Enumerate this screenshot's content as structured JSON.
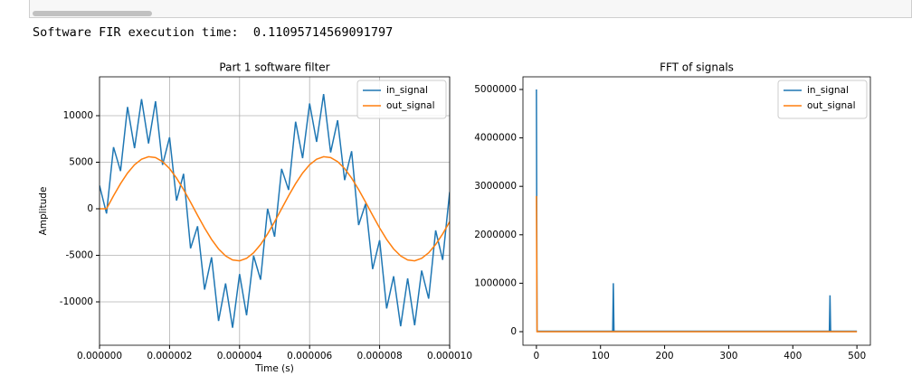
{
  "output_text": "Software FIR execution time:  0.11095714569091797",
  "chart_data": [
    {
      "type": "line",
      "title": "Part 1 software filter",
      "xlabel": "Time (s)",
      "ylabel": "Amplitude",
      "x": [
        0,
        2e-07,
        4e-07,
        6e-07,
        8e-07,
        1e-06,
        1.2e-06,
        1.4e-06,
        1.6e-06,
        1.8e-06,
        2e-06,
        2.2e-06,
        2.4e-06,
        2.6e-06,
        2.8e-06,
        3e-06,
        3.2e-06,
        3.4e-06,
        3.6e-06,
        3.8e-06,
        4e-06,
        4.2e-06,
        4.4e-06,
        4.6e-06,
        4.8e-06,
        5e-06,
        5.2e-06,
        5.4e-06,
        5.6e-06,
        5.8e-06,
        6e-06,
        6.2e-06,
        6.4e-06,
        6.6e-06,
        6.8e-06,
        7e-06,
        7.2e-06,
        7.4e-06,
        7.6e-06,
        7.8e-06,
        8e-06,
        8.2e-06,
        8.4e-06,
        8.6e-06,
        8.8e-06,
        9e-06,
        9.2e-06,
        9.4e-06,
        9.6e-06,
        9.8e-06,
        1e-05
      ],
      "series": [
        {
          "name": "in_signal",
          "color": "#1f77b4",
          "values": [
            2500,
            -510,
            6620,
            4050,
            10940,
            6510,
            11780,
            7020,
            11550,
            4710,
            7680,
            880,
            3750,
            -4250,
            -1880,
            -8680,
            -5210,
            -12050,
            -8020,
            -12780,
            -7010,
            -11440,
            -5050,
            -7620,
            10,
            -3000,
            4290,
            2020,
            9350,
            5440,
            11310,
            7180,
            12320,
            6050,
            9510,
            3080,
            6180,
            -1750,
            550,
            -6480,
            -3380,
            -10710,
            -7250,
            -12620,
            -7480,
            -12510,
            -6640,
            -9650,
            -2320,
            -5490,
            1800
          ]
        },
        {
          "name": "out_signal",
          "color": "#ff7f0e",
          "values": [
            0,
            0,
            1394,
            2699,
            3836,
            4726,
            5326,
            5589,
            5499,
            5068,
            4318,
            3293,
            2061,
            700,
            -700,
            -2061,
            -3293,
            -4318,
            -5068,
            -5499,
            -5589,
            -5326,
            -4726,
            -3836,
            -2699,
            -1394,
            0,
            1394,
            2699,
            3836,
            4726,
            5326,
            5589,
            5499,
            5068,
            4318,
            3293,
            2061,
            700,
            -700,
            -2061,
            -3293,
            -4318,
            -5068,
            -5499,
            -5589,
            -5326,
            -4726,
            -3836,
            -2699,
            -1394
          ]
        }
      ],
      "xlim": [
        0,
        1e-05
      ],
      "xticks": [
        {
          "value": 0,
          "label": "0.000000"
        },
        {
          "value": 2e-06,
          "label": "0.000002"
        },
        {
          "value": 4e-06,
          "label": "0.000004"
        },
        {
          "value": 6e-06,
          "label": "0.000006"
        },
        {
          "value": 8e-06,
          "label": "0.000008"
        },
        {
          "value": 1e-05,
          "label": "0.000010"
        }
      ],
      "ylim": [
        -14660,
        14175
      ],
      "yticks": [
        -10000,
        -5000,
        0,
        5000,
        10000
      ],
      "grid": true,
      "legend": "upper right"
    },
    {
      "type": "line",
      "title": "FFT of signals",
      "x": [
        0,
        1,
        2,
        119,
        120,
        121,
        457,
        458,
        459,
        500
      ],
      "series": [
        {
          "name": "in_signal",
          "color": "#1f77b4",
          "values": [
            5000000,
            10000,
            10000,
            10000,
            1000000,
            10000,
            10000,
            750000,
            10000,
            10000
          ]
        },
        {
          "name": "out_signal",
          "color": "#ff7f0e",
          "values": [
            2800000,
            0,
            0,
            0,
            0,
            0,
            0,
            0,
            0,
            0
          ]
        }
      ],
      "xlim": [
        -21,
        521
      ],
      "xticks": [
        0,
        100,
        200,
        300,
        400,
        500
      ],
      "ylim": [
        -280000,
        5261000
      ],
      "yticks": [
        0,
        1000000,
        2000000,
        3000000,
        4000000,
        5000000
      ],
      "grid": false,
      "legend": "upper right"
    }
  ]
}
